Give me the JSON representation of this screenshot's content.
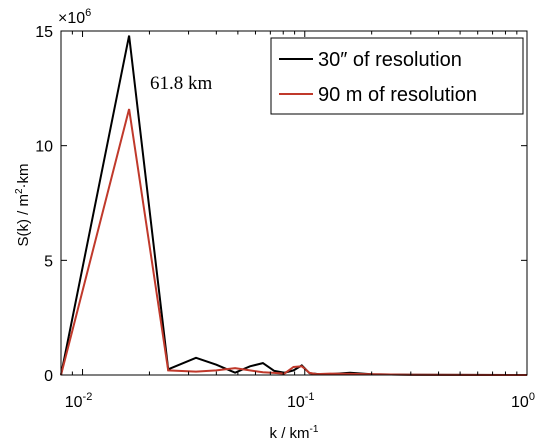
{
  "chart_data": {
    "type": "line",
    "xscale": "log",
    "xlim": [
      0.008,
      1
    ],
    "ylim": [
      0,
      15000000
    ],
    "y_multiplier_label": "×10",
    "y_multiplier_exp": "6",
    "ylabel_main": "S(k) / m",
    "ylabel_sup": "2",
    "ylabel_tail": "·km",
    "xlabel_main": "k / km",
    "xlabel_sup": "-1",
    "annotation": "61.8 km",
    "x_ticks": [
      {
        "value": 0.01,
        "base": "10",
        "exp": "-2"
      },
      {
        "value": 0.1,
        "base": "10",
        "exp": "-1"
      },
      {
        "value": 1,
        "base": "10",
        "exp": "0"
      }
    ],
    "y_ticks": [
      {
        "value": 0,
        "label": "0"
      },
      {
        "value": 5000000,
        "label": "5"
      },
      {
        "value": 10000000,
        "label": "10"
      },
      {
        "value": 15000000,
        "label": "15"
      }
    ],
    "series": [
      {
        "name": "30″ of resolution",
        "color": "#000000",
        "x": [
          0.008,
          0.0162,
          0.0243,
          0.0324,
          0.04,
          0.0486,
          0.0567,
          0.0648,
          0.0729,
          0.081,
          0.089,
          0.097,
          0.105,
          0.113,
          0.13,
          0.16,
          0.2,
          0.3,
          0.5,
          1.0
        ],
        "y": [
          0,
          14800000,
          250000,
          750000,
          450000,
          100000,
          380000,
          520000,
          180000,
          100000,
          200000,
          420000,
          80000,
          50000,
          40000,
          100000,
          30000,
          10000,
          5000,
          2000
        ]
      },
      {
        "name": "90 m of resolution",
        "color": "#c0392b",
        "x": [
          0.008,
          0.0162,
          0.0243,
          0.0324,
          0.04,
          0.0486,
          0.0567,
          0.0648,
          0.0729,
          0.081,
          0.089,
          0.097,
          0.105,
          0.113,
          0.13,
          0.16,
          0.2,
          0.3,
          0.5,
          1.0
        ],
        "y": [
          0,
          11600000,
          200000,
          150000,
          200000,
          300000,
          200000,
          120000,
          90000,
          60000,
          350000,
          380000,
          90000,
          40000,
          60000,
          50000,
          30000,
          10000,
          5000,
          2000
        ]
      }
    ],
    "legend_position": "top-right",
    "grid": false
  }
}
